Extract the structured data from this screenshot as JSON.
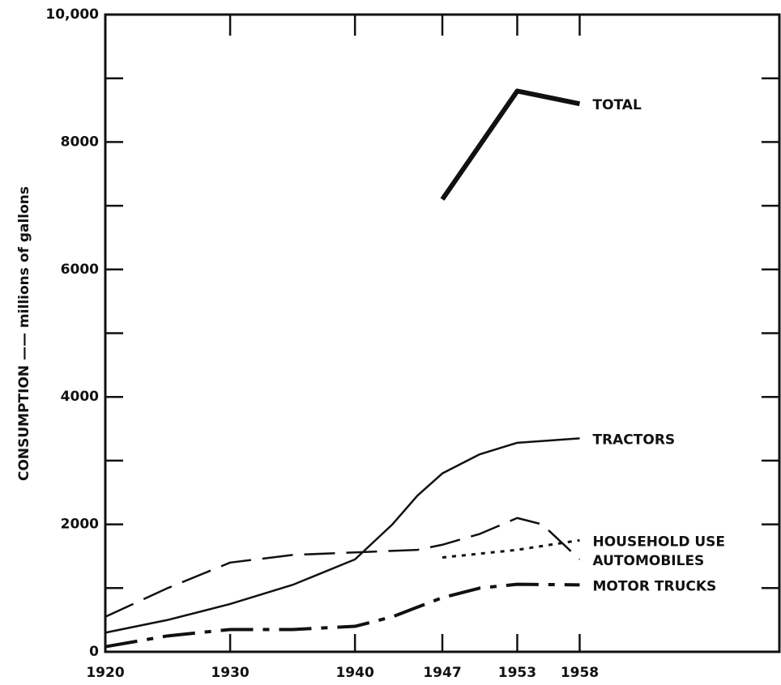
{
  "chart_data": {
    "type": "line",
    "ylabel": "CONSUMPTION —— millions of gallons",
    "xlim": [
      1920,
      1974
    ],
    "xticks": [
      1920,
      1930,
      1940,
      1947,
      1953,
      1958
    ],
    "ylim": [
      0,
      10000
    ],
    "yticks": [
      0,
      2000,
      4000,
      6000,
      8000,
      {
        "value": 10000,
        "label": "10,000"
      }
    ],
    "grid": false,
    "series": [
      {
        "name": "TOTAL",
        "color": "#111111",
        "dash": "solid",
        "linewidth": 6,
        "x": [
          1947,
          1953,
          1958
        ],
        "values": [
          7100,
          8800,
          8600
        ]
      },
      {
        "name": "TRACTORS",
        "color": "#111111",
        "dash": "solid",
        "linewidth": 2.5,
        "x": [
          1920,
          1925,
          1930,
          1935,
          1940,
          1943,
          1945,
          1947,
          1950,
          1953,
          1958
        ],
        "values": [
          300,
          500,
          750,
          1050,
          1450,
          2000,
          2450,
          2800,
          3100,
          3280,
          3350
        ]
      },
      {
        "name": "HOUSEHOLD USE",
        "color": "#111111",
        "dash": "dotted",
        "linewidth": 3,
        "x": [
          1947,
          1953,
          1958
        ],
        "values": [
          1480,
          1600,
          1750
        ]
      },
      {
        "name": "AUTOMOBILES",
        "color": "#111111",
        "dash": "dashed",
        "linewidth": 2.5,
        "x": [
          1920,
          1925,
          1930,
          1935,
          1940,
          1945,
          1947,
          1950,
          1953,
          1955,
          1958
        ],
        "values": [
          550,
          1000,
          1400,
          1520,
          1560,
          1600,
          1680,
          1850,
          2100,
          2000,
          1450
        ]
      },
      {
        "name": "MOTOR TRUCKS",
        "color": "#111111",
        "dash": "dashdot",
        "linewidth": 4,
        "x": [
          1920,
          1925,
          1930,
          1935,
          1940,
          1943,
          1947,
          1950,
          1953,
          1958
        ],
        "values": [
          80,
          250,
          350,
          350,
          400,
          550,
          850,
          1000,
          1060,
          1050
        ]
      }
    ]
  }
}
